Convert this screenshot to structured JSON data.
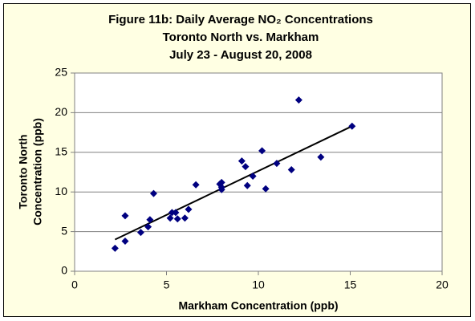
{
  "chart_data": {
    "type": "scatter",
    "title": [
      "Figure 11b: Daily Average NO₂ Concentrations",
      "Toronto North vs. Markham",
      "July 23 - August 20, 2008"
    ],
    "xlabel": "Markham Concentration (ppb)",
    "ylabel": [
      "Toronto North",
      "Concentration (ppb)"
    ],
    "x": [
      2.2,
      2.75,
      2.75,
      3.6,
      4.0,
      4.1,
      4.3,
      5.2,
      5.3,
      5.5,
      5.6,
      6.0,
      6.2,
      6.6,
      7.9,
      8.0,
      8.0,
      8.0,
      9.1,
      9.3,
      9.4,
      9.7,
      10.2,
      10.4,
      11.0,
      11.8,
      12.2,
      13.4,
      15.1
    ],
    "values": [
      2.9,
      3.8,
      7.0,
      4.9,
      5.6,
      6.5,
      9.8,
      6.7,
      7.4,
      7.4,
      6.6,
      6.7,
      7.8,
      10.9,
      11.0,
      10.6,
      11.2,
      10.3,
      13.9,
      13.2,
      10.8,
      12.0,
      15.2,
      10.4,
      13.6,
      12.8,
      21.6,
      14.4,
      18.3
    ],
    "color": "#000080",
    "trendline": {
      "x": [
        2.2,
        15.1
      ],
      "values": [
        4.0,
        18.3
      ],
      "color": "#000000"
    },
    "xlim": [
      0,
      20
    ],
    "xticks": [
      0,
      5,
      10,
      15,
      20
    ],
    "ylim": [
      0,
      25
    ],
    "yticks": [
      0,
      5,
      10,
      15,
      20,
      25
    ],
    "grid": true
  }
}
